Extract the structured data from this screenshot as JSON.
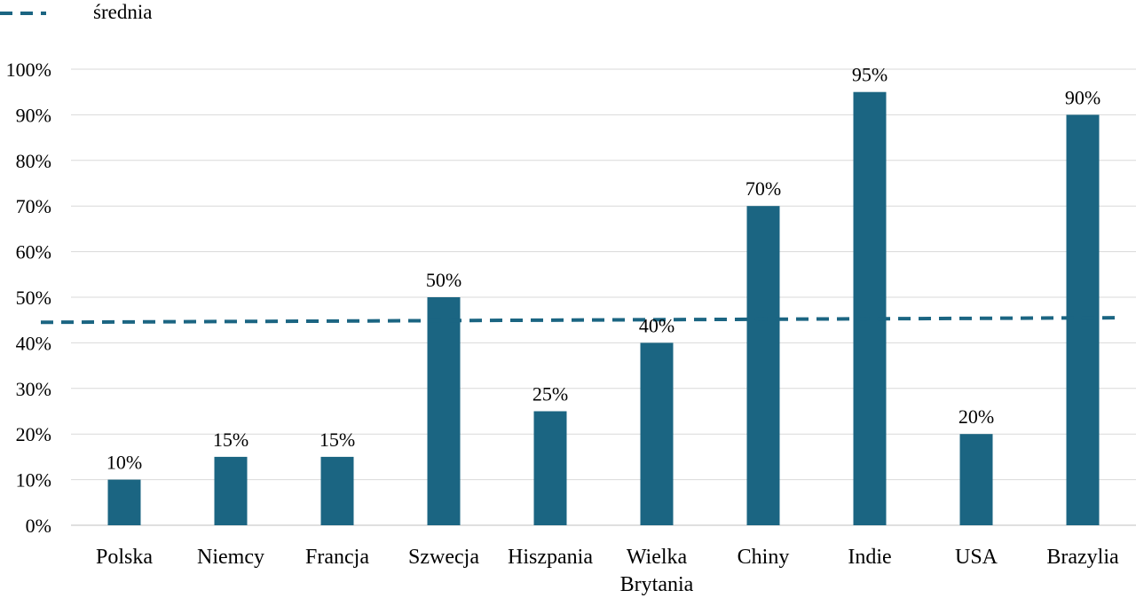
{
  "chart_data": {
    "type": "bar",
    "categories": [
      "Polska",
      "Niemcy",
      "Francja",
      "Szwecja",
      "Hiszpania",
      "Wielka Brytania",
      "Chiny",
      "Indie",
      "USA",
      "Brazylia"
    ],
    "category_lines": [
      [
        "Polska"
      ],
      [
        "Niemcy"
      ],
      [
        "Francja"
      ],
      [
        "Szwecja"
      ],
      [
        "Hiszpania"
      ],
      [
        "Wielka",
        "Brytania"
      ],
      [
        "Chiny"
      ],
      [
        "Indie"
      ],
      [
        "USA"
      ],
      [
        "Brazylia"
      ]
    ],
    "values": [
      10,
      15,
      15,
      50,
      25,
      40,
      70,
      95,
      20,
      90
    ],
    "data_labels": [
      "10%",
      "15%",
      "15%",
      "50%",
      "25%",
      "40%",
      "70%",
      "95%",
      "20%",
      "90%"
    ],
    "y_ticks": [
      0,
      10,
      20,
      30,
      40,
      50,
      60,
      70,
      80,
      90,
      100
    ],
    "y_tick_labels": [
      "0%",
      "10%",
      "20%",
      "30%",
      "40%",
      "50%",
      "60%",
      "70%",
      "80%",
      "90%",
      "100%"
    ],
    "ylim": [
      0,
      100
    ],
    "grid": true,
    "average_line": {
      "name": "średnia",
      "start": 44.5,
      "end": 45.5,
      "style": "dashed"
    },
    "legend": {
      "position": "top-left",
      "entries": [
        "średnia"
      ]
    },
    "colors": {
      "bar": "#1b6582",
      "average": "#1b6582",
      "grid": "#d9d9d9"
    }
  }
}
